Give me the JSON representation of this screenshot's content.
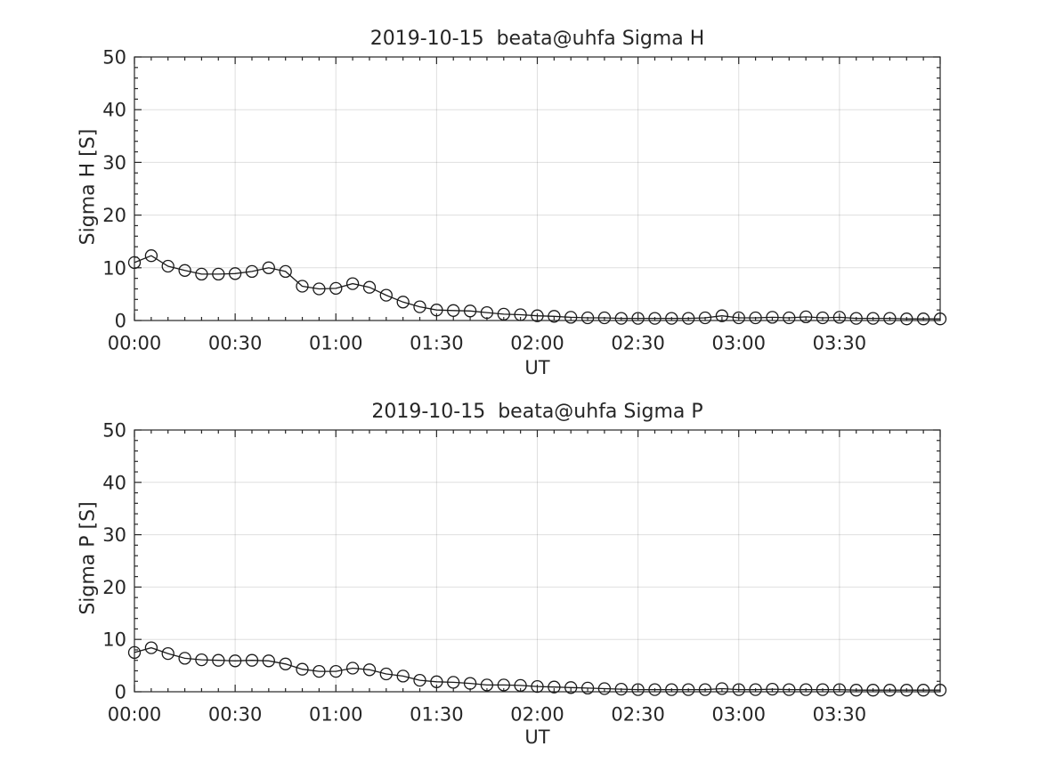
{
  "figure": {
    "background": "#ffffff",
    "text_color": "#262626",
    "axis_color": "#262626",
    "grid_color": "rgba(38,38,38,0.15)",
    "series_color": "#1a1a1a"
  },
  "chart_data": [
    {
      "type": "line",
      "title": "2019-10-15  beata@uhfa Sigma H",
      "xlabel": "UT",
      "ylabel": "Sigma H [S]",
      "ylim": [
        0,
        50
      ],
      "xlim_minutes": [
        0,
        240
      ],
      "grid": true,
      "legend": null,
      "marker": "open-circle",
      "x_major_tick_minutes": 30,
      "x_minor_tick_minutes": 5,
      "y_major_tick": 10,
      "y_minor_tick": 2,
      "x_tick_labels": [
        "00:00",
        "00:30",
        "01:00",
        "01:30",
        "02:00",
        "02:30",
        "03:00",
        "03:30"
      ],
      "y_tick_labels": [
        "0",
        "10",
        "20",
        "30",
        "40",
        "50"
      ],
      "x": [
        "00:00",
        "00:05",
        "00:10",
        "00:15",
        "00:20",
        "00:25",
        "00:30",
        "00:35",
        "00:40",
        "00:45",
        "00:50",
        "00:55",
        "01:00",
        "01:05",
        "01:10",
        "01:15",
        "01:20",
        "01:25",
        "01:30",
        "01:35",
        "01:40",
        "01:45",
        "01:50",
        "01:55",
        "02:00",
        "02:05",
        "02:10",
        "02:15",
        "02:20",
        "02:25",
        "02:30",
        "02:35",
        "02:40",
        "02:45",
        "02:50",
        "02:55",
        "03:00",
        "03:05",
        "03:10",
        "03:15",
        "03:20",
        "03:25",
        "03:30",
        "03:35",
        "03:40",
        "03:45",
        "03:50",
        "03:55",
        "04:00"
      ],
      "values": [
        11.0,
        12.3,
        10.3,
        9.5,
        8.8,
        8.8,
        8.9,
        9.3,
        10.0,
        9.3,
        6.5,
        6.0,
        6.1,
        7.0,
        6.3,
        4.8,
        3.5,
        2.6,
        2.0,
        1.9,
        1.8,
        1.5,
        1.2,
        1.1,
        0.9,
        0.8,
        0.6,
        0.5,
        0.5,
        0.4,
        0.4,
        0.4,
        0.4,
        0.4,
        0.5,
        0.9,
        0.5,
        0.5,
        0.6,
        0.5,
        0.7,
        0.5,
        0.6,
        0.4,
        0.4,
        0.4,
        0.3,
        0.3,
        0.3
      ]
    },
    {
      "type": "line",
      "title": "2019-10-15  beata@uhfa Sigma P",
      "xlabel": "UT",
      "ylabel": "Sigma P [S]",
      "ylim": [
        0,
        50
      ],
      "xlim_minutes": [
        0,
        240
      ],
      "grid": true,
      "legend": null,
      "marker": "open-circle",
      "x_major_tick_minutes": 30,
      "x_minor_tick_minutes": 5,
      "y_major_tick": 10,
      "y_minor_tick": 2,
      "x_tick_labels": [
        "00:00",
        "00:30",
        "01:00",
        "01:30",
        "02:00",
        "02:30",
        "03:00",
        "03:30"
      ],
      "y_tick_labels": [
        "0",
        "10",
        "20",
        "30",
        "40",
        "50"
      ],
      "x": [
        "00:00",
        "00:05",
        "00:10",
        "00:15",
        "00:20",
        "00:25",
        "00:30",
        "00:35",
        "00:40",
        "00:45",
        "00:50",
        "00:55",
        "01:00",
        "01:05",
        "01:10",
        "01:15",
        "01:20",
        "01:25",
        "01:30",
        "01:35",
        "01:40",
        "01:45",
        "01:50",
        "01:55",
        "02:00",
        "02:05",
        "02:10",
        "02:15",
        "02:20",
        "02:25",
        "02:30",
        "02:35",
        "02:40",
        "02:45",
        "02:50",
        "02:55",
        "03:00",
        "03:05",
        "03:10",
        "03:15",
        "03:20",
        "03:25",
        "03:30",
        "03:35",
        "03:40",
        "03:45",
        "03:50",
        "03:55",
        "04:00"
      ],
      "values": [
        7.5,
        8.4,
        7.3,
        6.4,
        6.1,
        6.0,
        5.9,
        6.0,
        5.9,
        5.3,
        4.3,
        3.9,
        3.9,
        4.5,
        4.2,
        3.4,
        3.0,
        2.2,
        1.9,
        1.8,
        1.6,
        1.3,
        1.3,
        1.2,
        1.0,
        0.9,
        0.8,
        0.7,
        0.6,
        0.5,
        0.4,
        0.4,
        0.4,
        0.4,
        0.4,
        0.6,
        0.4,
        0.4,
        0.5,
        0.4,
        0.4,
        0.4,
        0.4,
        0.3,
        0.3,
        0.3,
        0.3,
        0.3,
        0.3
      ]
    }
  ]
}
